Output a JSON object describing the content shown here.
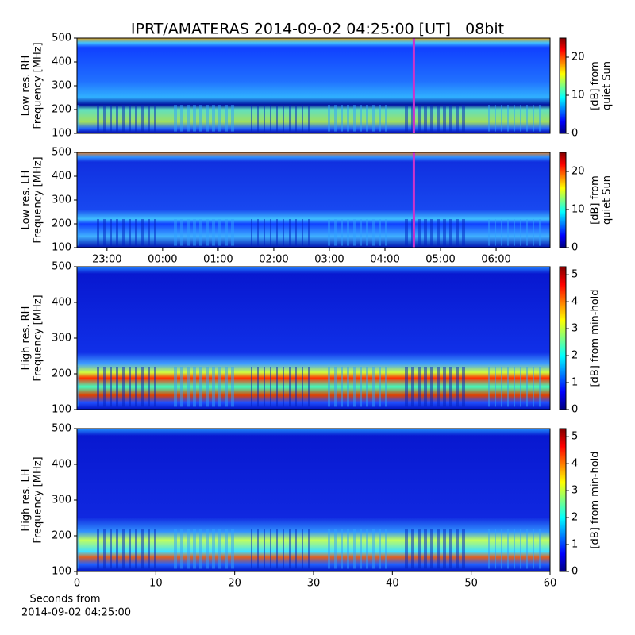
{
  "chart_data": [
    {
      "type": "heatmap",
      "title": "IPRT/AMATERAS 2014-09-02 04:25:00 [UT]   08bit",
      "ylabel": [
        "Low res. RH",
        "Frequency [MHz]"
      ],
      "ylim": [
        100,
        500
      ],
      "yticks": [
        100,
        200,
        300,
        400,
        500
      ],
      "xlim": [
        22.46,
        30.97
      ],
      "marker_x": 28.52,
      "marker_color": "#cc33cc",
      "clabel": [
        "[dB] from",
        "quiet Sun"
      ],
      "clim": [
        0,
        25
      ],
      "cticks": [
        0,
        10,
        20
      ],
      "colormap": "jet"
    },
    {
      "type": "heatmap",
      "ylabel": [
        "Low res. LH",
        "Frequency [MHz]"
      ],
      "ylim": [
        100,
        500
      ],
      "yticks": [
        100,
        200,
        300,
        400,
        500
      ],
      "xlim": [
        22.46,
        30.97
      ],
      "marker_x": 28.52,
      "marker_color": "#cc33cc",
      "xticks": [
        {
          "value": 23,
          "label": "23:00"
        },
        {
          "value": 24,
          "label": "00:00"
        },
        {
          "value": 25,
          "label": "01:00"
        },
        {
          "value": 26,
          "label": "02:00"
        },
        {
          "value": 27,
          "label": "03:00"
        },
        {
          "value": 28,
          "label": "04:00"
        },
        {
          "value": 29,
          "label": "05:00"
        },
        {
          "value": 30,
          "label": "06:00"
        }
      ],
      "clabel": [
        "[dB] from",
        "quiet Sun"
      ],
      "clim": [
        0,
        25
      ],
      "cticks": [
        0,
        10,
        20
      ],
      "colormap": "jet"
    },
    {
      "type": "heatmap",
      "ylabel": [
        "High res. RH",
        "Frequency [MHz]"
      ],
      "ylim": [
        100,
        500
      ],
      "yticks": [
        100,
        200,
        300,
        400,
        500
      ],
      "xlim": [
        0,
        60
      ],
      "clabel": [
        "[dB] from min-hold"
      ],
      "clim": [
        0,
        5.3
      ],
      "cticks": [
        0,
        1,
        2,
        3,
        4,
        5
      ],
      "colormap": "jet"
    },
    {
      "type": "heatmap",
      "ylabel": [
        "High res. LH",
        "Frequency [MHz]"
      ],
      "ylim": [
        100,
        500
      ],
      "yticks": [
        100,
        200,
        300,
        400,
        500
      ],
      "xlim": [
        0,
        60
      ],
      "xticks": [
        0,
        10,
        20,
        30,
        40,
        50,
        60
      ],
      "xlabel": [
        "Seconds from",
        "2014-09-02 04:25:00"
      ],
      "clabel": [
        "[dB] from min-hold"
      ],
      "clim": [
        0,
        5.3
      ],
      "cticks": [
        0,
        1,
        2,
        3,
        4,
        5
      ],
      "colormap": "jet"
    }
  ]
}
